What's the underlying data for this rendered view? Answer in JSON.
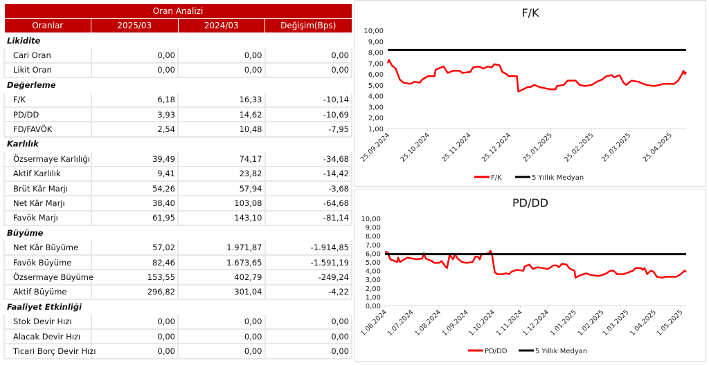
{
  "table": {
    "title": "Oran Analizi",
    "headers": [
      "Oranlar",
      "2025/03",
      "2024/03",
      "Değişim(Bps)"
    ],
    "sections": [
      {
        "name": "Likidite",
        "rows": [
          [
            "Cari Oran",
            "0,00",
            "0,00",
            "0,00"
          ],
          [
            "Likit Oran",
            "0,00",
            "0,00",
            "0,00"
          ]
        ]
      },
      {
        "name": "Değerleme",
        "rows": [
          [
            "F/K",
            "6,18",
            "16,33",
            "-10,14"
          ],
          [
            "PD/DD",
            "3,93",
            "14,62",
            "-10,69"
          ],
          [
            "FD/FAVÖK",
            "2,54",
            "10,48",
            "-7,95"
          ]
        ]
      },
      {
        "name": "Karlılık",
        "rows": [
          [
            "Özsermaye Karlılığı",
            "39,49",
            "74,17",
            "-34,68"
          ],
          [
            "Aktif Karlılık",
            "9,41",
            "23,82",
            "-14,42"
          ],
          [
            "Brüt Kâr Marjı",
            "54,26",
            "57,94",
            "-3,68"
          ],
          [
            "Net Kâr Marjı",
            "38,40",
            "103,08",
            "-64,68"
          ],
          [
            "Favök Marjı",
            "61,95",
            "143,10",
            "-81,14"
          ]
        ]
      },
      {
        "name": "Büyüme",
        "rows": [
          [
            "Net Kâr Büyüme",
            "57,02",
            "1.971,87",
            "-1.914,85"
          ],
          [
            "Favök Büyüme",
            "82,46",
            "1.673,65",
            "-1.591,19"
          ],
          [
            "Özsermaye Büyüme",
            "153,55",
            "402,79",
            "-249,24"
          ],
          [
            "Aktif Büyüme",
            "296,82",
            "301,04",
            "-4,22"
          ]
        ]
      },
      {
        "name": "Faaliyet Etkinliği",
        "rows": [
          [
            "Stok Devir Hızı",
            "0,00",
            "0,00",
            "0,00"
          ],
          [
            "Alacak Devir Hızı",
            "0,00",
            "0,00",
            "0,00"
          ],
          [
            "Ticari Borç Devir Hızı",
            "0,00",
            "0,00",
            "0,00"
          ]
        ]
      }
    ],
    "header_color": "#c00000"
  },
  "chart_data": [
    {
      "type": "line",
      "title": "F/K",
      "ylim": [
        1,
        10
      ],
      "yticks": [
        "10,00",
        "9,00",
        "8,00",
        "7,00",
        "6,00",
        "5,00",
        "4,00",
        "3,00",
        "2,00",
        "1,00"
      ],
      "xticks": [
        "25.09.2024",
        "25.10.2024",
        "25.11.2024",
        "25.12.2024",
        "25.01.2025",
        "25.02.2025",
        "25.03.2025",
        "25.04.2025"
      ],
      "xrange": [
        "25.09.2024",
        "07.05.2025"
      ],
      "series": [
        {
          "name": "F/K",
          "color": "#ff0000",
          "points": [
            [
              "25.09.2024",
              7.0
            ],
            [
              "26.09.2024",
              7.3
            ],
            [
              "28.09.2024",
              6.8
            ],
            [
              "01.10.2024",
              6.5
            ],
            [
              "04.10.2024",
              5.5
            ],
            [
              "07.10.2024",
              5.2
            ],
            [
              "12.10.2024",
              5.1
            ],
            [
              "15.10.2024",
              5.3
            ],
            [
              "19.10.2024",
              5.2
            ],
            [
              "21.10.2024",
              5.5
            ],
            [
              "25.10.2024",
              5.8
            ],
            [
              "30.10.2024",
              5.8
            ],
            [
              "31.10.2024",
              6.4
            ],
            [
              "04.11.2024",
              6.6
            ],
            [
              "06.11.2024",
              6.7
            ],
            [
              "09.11.2024",
              6.1
            ],
            [
              "13.11.2024",
              6.3
            ],
            [
              "18.11.2024",
              6.3
            ],
            [
              "20.11.2024",
              6.1
            ],
            [
              "26.11.2024",
              6.2
            ],
            [
              "28.11.2024",
              6.6
            ],
            [
              "02.12.2024",
              6.7
            ],
            [
              "06.12.2024",
              6.5
            ],
            [
              "09.12.2024",
              6.7
            ],
            [
              "12.12.2024",
              6.6
            ],
            [
              "14.12.2024",
              6.9
            ],
            [
              "18.12.2024",
              6.8
            ],
            [
              "20.12.2024",
              6.2
            ],
            [
              "23.12.2024",
              6.0
            ],
            [
              "25.12.2024",
              5.8
            ],
            [
              "31.12.2024",
              5.8
            ],
            [
              "01.01.2025",
              4.4
            ],
            [
              "03.01.2025",
              4.5
            ],
            [
              "08.01.2025",
              4.8
            ],
            [
              "10.01.2025",
              4.8
            ],
            [
              "13.01.2025",
              5.0
            ],
            [
              "17.01.2025",
              4.8
            ],
            [
              "21.01.2025",
              4.7
            ],
            [
              "25.01.2025",
              4.6
            ],
            [
              "29.01.2025",
              4.6
            ],
            [
              "30.01.2025",
              4.9
            ],
            [
              "04.02.2025",
              5.0
            ],
            [
              "07.02.2025",
              5.4
            ],
            [
              "13.02.2025",
              5.4
            ],
            [
              "16.02.2025",
              5.0
            ],
            [
              "20.02.2025",
              4.9
            ],
            [
              "25.02.2025",
              5.0
            ],
            [
              "01.03.2025",
              5.3
            ],
            [
              "05.03.2025",
              5.5
            ],
            [
              "08.03.2025",
              5.8
            ],
            [
              "12.03.2025",
              5.9
            ],
            [
              "14.03.2025",
              5.7
            ],
            [
              "18.03.2025",
              5.9
            ],
            [
              "21.03.2025",
              5.2
            ],
            [
              "23.03.2025",
              5.0
            ],
            [
              "27.03.2025",
              5.4
            ],
            [
              "01.04.2025",
              5.3
            ],
            [
              "07.04.2025",
              5.0
            ],
            [
              "13.04.2025",
              4.9
            ],
            [
              "17.04.2025",
              5.0
            ],
            [
              "20.04.2025",
              5.1
            ],
            [
              "28.04.2025",
              5.1
            ],
            [
              "01.05.2025",
              5.4
            ],
            [
              "04.05.2025",
              6.0
            ],
            [
              "05.05.2025",
              6.3
            ],
            [
              "06.05.2025",
              6.0
            ],
            [
              "07.05.2025",
              6.2
            ]
          ]
        },
        {
          "name": "5 Yıllık Medyan",
          "color": "#000000",
          "constant": 8.2
        }
      ]
    },
    {
      "type": "line",
      "title": "PD/DD",
      "ylim": [
        0,
        10
      ],
      "yticks": [
        "10,00",
        "9,00",
        "8,00",
        "7,00",
        "6,00",
        "5,00",
        "4,00",
        "3,00",
        "2,00",
        "1,00",
        "0,00"
      ],
      "xticks": [
        "1.06.2024",
        "1.07.2024",
        "1.08.2024",
        "1.09.2024",
        "1.10.2024",
        "1.11.2024",
        "1.12.2024",
        "1.01.2025",
        "1.02.2025",
        "1.03.2025",
        "1.04.2025",
        "1.05.2025"
      ],
      "xrange": [
        "01.06.2024",
        "07.05.2025"
      ],
      "series": [
        {
          "name": "PD/DD",
          "color": "#ff0000",
          "points": [
            [
              "01.06.2024",
              6.2
            ],
            [
              "04.06.2024",
              6.1
            ],
            [
              "07.06.2024",
              5.3
            ],
            [
              "12.06.2024",
              5.1
            ],
            [
              "15.06.2024",
              5.0
            ],
            [
              "16.06.2024",
              5.5
            ],
            [
              "18.06.2024",
              5.0
            ],
            [
              "23.06.2024",
              5.3
            ],
            [
              "26.06.2024",
              5.5
            ],
            [
              "02.07.2024",
              5.4
            ],
            [
              "07.07.2024",
              5.3
            ],
            [
              "13.07.2024",
              5.4
            ],
            [
              "15.07.2024",
              6.0
            ],
            [
              "17.07.2024",
              5.4
            ],
            [
              "24.07.2024",
              5.1
            ],
            [
              "27.07.2024",
              4.9
            ],
            [
              "01.08.2024",
              4.9
            ],
            [
              "04.08.2024",
              5.1
            ],
            [
              "08.08.2024",
              4.5
            ],
            [
              "10.08.2024",
              4.3
            ],
            [
              "13.08.2024",
              5.8
            ],
            [
              "17.08.2024",
              5.3
            ],
            [
              "19.08.2024",
              5.9
            ],
            [
              "22.08.2024",
              5.4
            ],
            [
              "27.08.2024",
              5.0
            ],
            [
              "01.09.2024",
              4.9
            ],
            [
              "08.09.2024",
              5.0
            ],
            [
              "11.09.2024",
              5.6
            ],
            [
              "14.09.2024",
              5.6
            ],
            [
              "16.09.2024",
              5.3
            ],
            [
              "18.09.2024",
              5.9
            ],
            [
              "27.09.2024",
              6.0
            ],
            [
              "28.09.2024",
              6.3
            ],
            [
              "30.09.2024",
              5.8
            ],
            [
              "03.10.2024",
              3.8
            ],
            [
              "06.10.2024",
              3.6
            ],
            [
              "12.10.2024",
              3.6
            ],
            [
              "16.10.2024",
              3.7
            ],
            [
              "19.10.2024",
              3.6
            ],
            [
              "22.10.2024",
              3.9
            ],
            [
              "28.10.2024",
              4.1
            ],
            [
              "04.11.2024",
              4.0
            ],
            [
              "06.11.2024",
              4.5
            ],
            [
              "11.11.2024",
              4.7
            ],
            [
              "15.11.2024",
              4.2
            ],
            [
              "20.11.2024",
              4.4
            ],
            [
              "26.11.2024",
              4.3
            ],
            [
              "02.12.2024",
              4.2
            ],
            [
              "08.12.2024",
              4.6
            ],
            [
              "12.12.2024",
              4.6
            ],
            [
              "14.12.2024",
              4.4
            ],
            [
              "18.12.2024",
              4.8
            ],
            [
              "23.12.2024",
              4.7
            ],
            [
              "26.12.2024",
              4.3
            ],
            [
              "29.12.2024",
              4.1
            ],
            [
              "01.01.2025",
              4.0
            ],
            [
              "02.01.2025",
              3.2
            ],
            [
              "08.01.2025",
              3.5
            ],
            [
              "14.01.2025",
              3.7
            ],
            [
              "20.01.2025",
              3.5
            ],
            [
              "28.01.2025",
              3.4
            ],
            [
              "01.02.2025",
              3.5
            ],
            [
              "06.02.2025",
              3.7
            ],
            [
              "10.02.2025",
              4.0
            ],
            [
              "14.02.2025",
              4.0
            ],
            [
              "18.02.2025",
              3.6
            ],
            [
              "25.02.2025",
              3.6
            ],
            [
              "03.03.2025",
              3.8
            ],
            [
              "08.03.2025",
              4.0
            ],
            [
              "11.03.2025",
              4.3
            ],
            [
              "17.03.2025",
              4.3
            ],
            [
              "19.03.2025",
              4.1
            ],
            [
              "21.03.2025",
              4.3
            ],
            [
              "24.03.2025",
              3.6
            ],
            [
              "28.03.2025",
              4.0
            ],
            [
              "31.03.2025",
              3.9
            ],
            [
              "04.04.2025",
              3.3
            ],
            [
              "10.04.2025",
              3.2
            ],
            [
              "14.04.2025",
              3.3
            ],
            [
              "26.04.2025",
              3.3
            ],
            [
              "01.05.2025",
              3.6
            ],
            [
              "05.05.2025",
              4.0
            ],
            [
              "06.05.2025",
              3.9
            ],
            [
              "07.05.2025",
              4.0
            ]
          ]
        },
        {
          "name": "5 Yıllık Medyan",
          "color": "#000000",
          "constant": 5.9
        }
      ]
    }
  ]
}
